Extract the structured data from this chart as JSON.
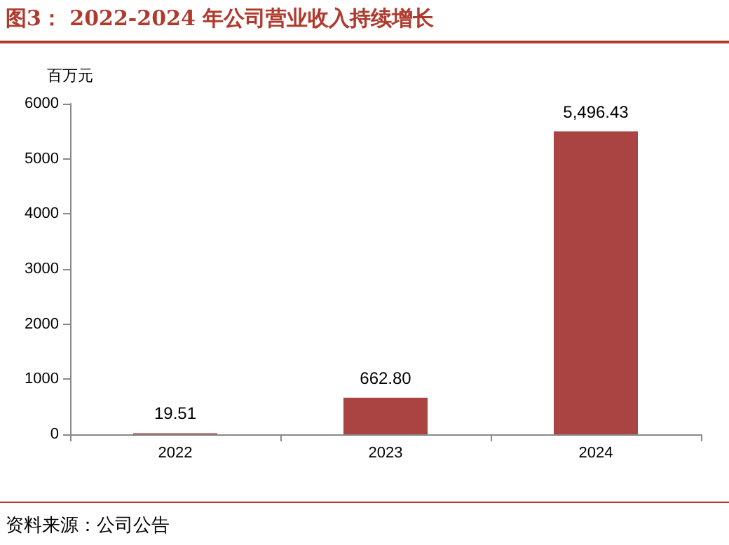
{
  "chart_data": {
    "type": "bar",
    "title": "图3：  2022-2024 年公司营业收入持续增长",
    "ylabel": "百万元",
    "annotations": [
      "资料来源：公司公告"
    ],
    "categories": [
      "2022",
      "2023",
      "2024"
    ],
    "values": [
      19.51,
      662.8,
      5496.43
    ],
    "value_labels": [
      "19.51",
      "662.80",
      "5,496.43"
    ],
    "color": "#a94442",
    "ylim": [
      0,
      6000
    ],
    "yticks": [
      0,
      1000,
      2000,
      3000,
      4000,
      5000,
      6000
    ],
    "grid": false
  }
}
